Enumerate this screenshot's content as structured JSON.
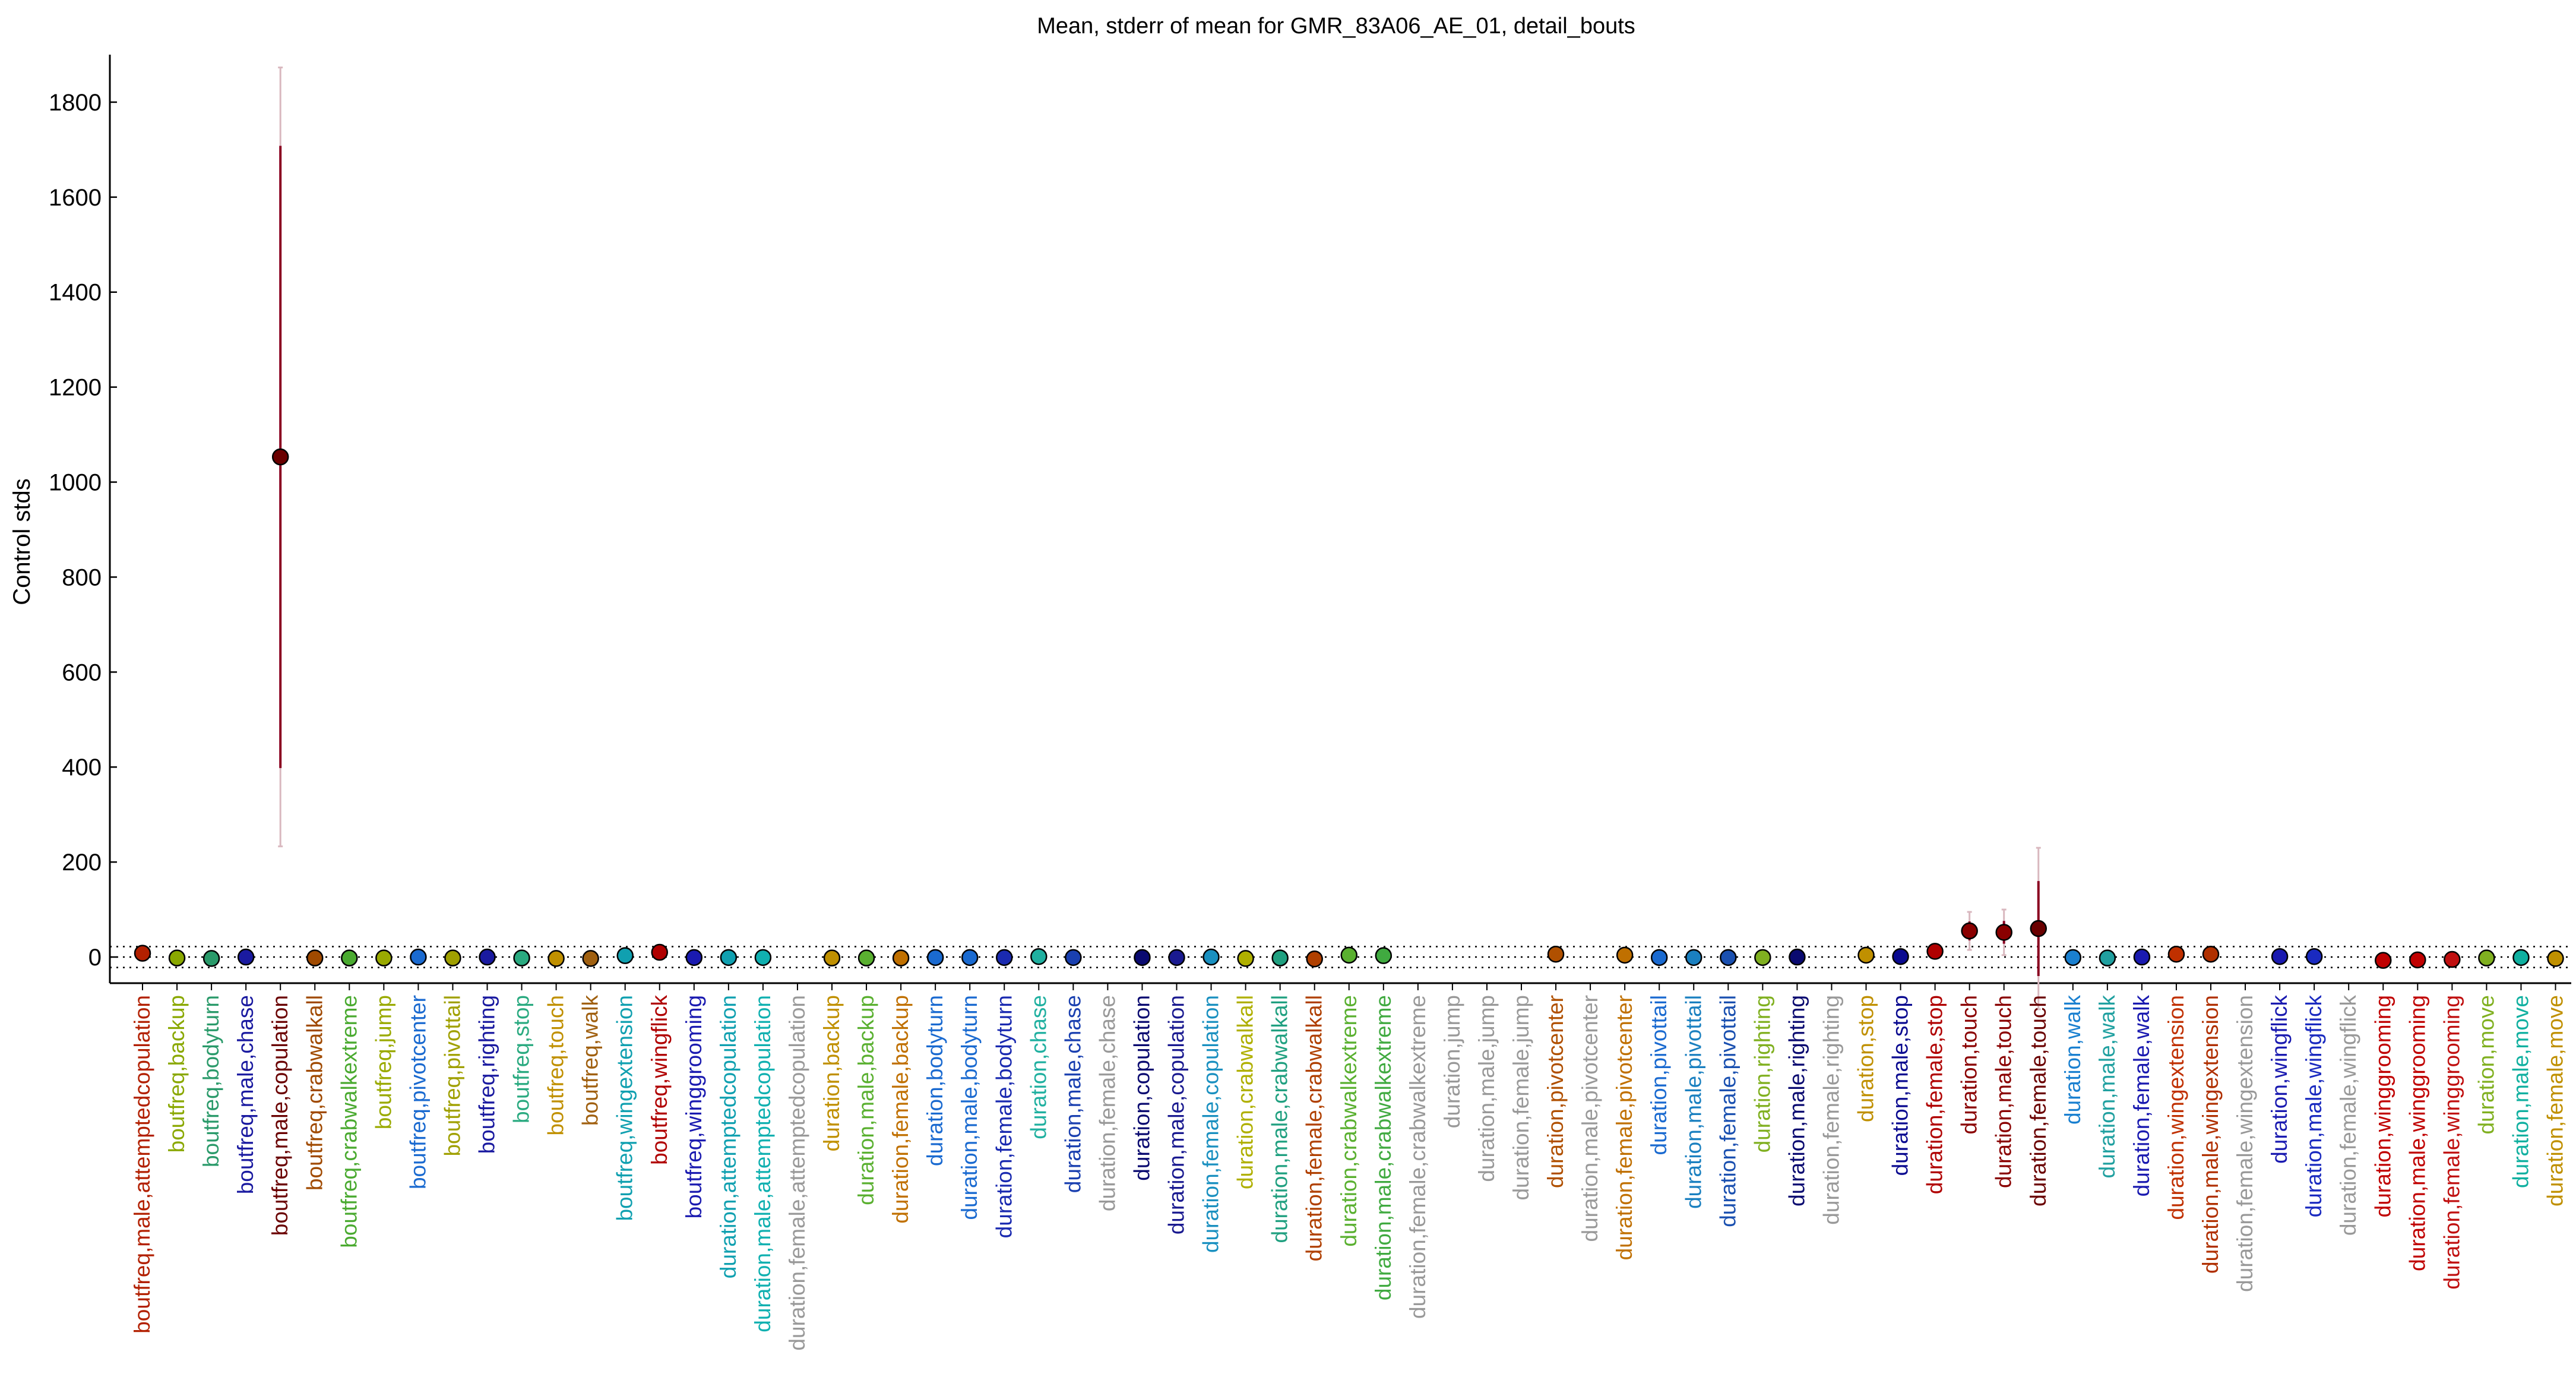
{
  "chart_data": {
    "type": "scatter",
    "title": "Mean, stderr of mean for GMR_83A06_AE_01, detail_bouts",
    "xlabel": "",
    "ylabel": "Control stds",
    "ylim": [
      -55,
      1900
    ],
    "yticks": [
      0,
      200,
      400,
      600,
      800,
      1000,
      1200,
      1400,
      1600,
      1800
    ],
    "grid": false,
    "legend": "none",
    "points": [
      {
        "label": "boutfreq,male,attemptedcopulation",
        "color": "#b22000",
        "mean": 8,
        "se": 3,
        "ci": 6
      },
      {
        "label": "boutfreq,backup",
        "color": "#8aa800",
        "mean": -2,
        "se": 2,
        "ci": 3
      },
      {
        "label": "boutfreq,bodyturn",
        "color": "#2a9a6a",
        "mean": -3,
        "se": 2,
        "ci": 3
      },
      {
        "label": "boutfreq,male,chase",
        "color": "#1a1aa0",
        "mean": 0,
        "se": 2,
        "ci": 3
      },
      {
        "label": "boutfreq,male,copulation",
        "color": "#6a0000",
        "mean": 1053,
        "se": 655,
        "ci": 820
      },
      {
        "label": "boutfreq,crabwalkall",
        "color": "#a04a00",
        "mean": -2,
        "se": 2,
        "ci": 3
      },
      {
        "label": "boutfreq,crabwalkextreme",
        "color": "#4aaa30",
        "mean": -2,
        "se": 2,
        "ci": 3
      },
      {
        "label": "boutfreq,jump",
        "color": "#9aaa00",
        "mean": -2,
        "se": 2,
        "ci": 3
      },
      {
        "label": "boutfreq,pivotcenter",
        "color": "#1a6ad0",
        "mean": 0,
        "se": 2,
        "ci": 3
      },
      {
        "label": "boutfreq,pivottail",
        "color": "#a0a000",
        "mean": -2,
        "se": 2,
        "ci": 3
      },
      {
        "label": "boutfreq,righting",
        "color": "#1a1aa0",
        "mean": 0,
        "se": 2,
        "ci": 3
      },
      {
        "label": "boutfreq,stop",
        "color": "#2aaa80",
        "mean": -2,
        "se": 2,
        "ci": 3
      },
      {
        "label": "boutfreq,touch",
        "color": "#c09000",
        "mean": -3,
        "se": 2,
        "ci": 3
      },
      {
        "label": "boutfreq,walk",
        "color": "#a06010",
        "mean": -3,
        "se": 2,
        "ci": 3
      },
      {
        "label": "boutfreq,wingextension",
        "color": "#10a0b0",
        "mean": 3,
        "se": 2,
        "ci": 3
      },
      {
        "label": "boutfreq,wingflick",
        "color": "#b00000",
        "mean": 10,
        "se": 3,
        "ci": 6
      },
      {
        "label": "boutfreq,winggrooming",
        "color": "#1a1ab0",
        "mean": -1,
        "se": 2,
        "ci": 3
      },
      {
        "label": "duration,attemptedcopulation",
        "color": "#10a0b0",
        "mean": -1,
        "se": 2,
        "ci": 3
      },
      {
        "label": "duration,male,attemptedcopulation",
        "color": "#10b0b0",
        "mean": -1,
        "se": 2,
        "ci": 3
      },
      {
        "label": "duration,female,attemptedcopulation",
        "color": "#999999",
        "mean": null,
        "se": 0,
        "ci": 0
      },
      {
        "label": "duration,backup",
        "color": "#c09000",
        "mean": -2,
        "se": 2,
        "ci": 3
      },
      {
        "label": "duration,male,backup",
        "color": "#5ab030",
        "mean": -2,
        "se": 2,
        "ci": 3
      },
      {
        "label": "duration,female,backup",
        "color": "#c07000",
        "mean": -2,
        "se": 2,
        "ci": 3
      },
      {
        "label": "duration,bodyturn",
        "color": "#1a6ad0",
        "mean": -1,
        "se": 2,
        "ci": 3
      },
      {
        "label": "duration,male,bodyturn",
        "color": "#1a6ad0",
        "mean": -1,
        "se": 2,
        "ci": 3
      },
      {
        "label": "duration,female,bodyturn",
        "color": "#1a2ab0",
        "mean": -1,
        "se": 2,
        "ci": 3
      },
      {
        "label": "duration,chase",
        "color": "#20b0a0",
        "mean": 1,
        "se": 2,
        "ci": 3
      },
      {
        "label": "duration,male,chase",
        "color": "#1a40b0",
        "mean": -1,
        "se": 2,
        "ci": 3
      },
      {
        "label": "duration,female,chase",
        "color": "#999999",
        "mean": null,
        "se": 0,
        "ci": 0
      },
      {
        "label": "duration,copulation",
        "color": "#0a0a70",
        "mean": -1,
        "se": 2,
        "ci": 3
      },
      {
        "label": "duration,male,copulation",
        "color": "#1a1a90",
        "mean": -1,
        "se": 2,
        "ci": 3
      },
      {
        "label": "duration,female,copulation",
        "color": "#1a90c0",
        "mean": 0,
        "se": 2,
        "ci": 3
      },
      {
        "label": "duration,crabwalkall",
        "color": "#b0b000",
        "mean": -3,
        "se": 2,
        "ci": 3
      },
      {
        "label": "duration,male,crabwalkall",
        "color": "#20a080",
        "mean": -2,
        "se": 2,
        "ci": 3
      },
      {
        "label": "duration,female,crabwalkall",
        "color": "#b04000",
        "mean": -4,
        "se": 2,
        "ci": 3
      },
      {
        "label": "duration,crabwalkextreme",
        "color": "#5ab030",
        "mean": 4,
        "se": 2,
        "ci": 3
      },
      {
        "label": "duration,male,crabwalkextreme",
        "color": "#40aa40",
        "mean": 3,
        "se": 2,
        "ci": 3
      },
      {
        "label": "duration,female,crabwalkextreme",
        "color": "#999999",
        "mean": null,
        "se": 0,
        "ci": 0
      },
      {
        "label": "duration,jump",
        "color": "#999999",
        "mean": null,
        "se": 0,
        "ci": 0
      },
      {
        "label": "duration,male,jump",
        "color": "#999999",
        "mean": null,
        "se": 0,
        "ci": 0
      },
      {
        "label": "duration,female,jump",
        "color": "#999999",
        "mean": null,
        "se": 0,
        "ci": 0
      },
      {
        "label": "duration,pivotcenter",
        "color": "#b05000",
        "mean": 6,
        "se": 2,
        "ci": 3
      },
      {
        "label": "duration,male,pivotcenter",
        "color": "#999999",
        "mean": null,
        "se": 0,
        "ci": 0
      },
      {
        "label": "duration,female,pivotcenter",
        "color": "#c07000",
        "mean": 4,
        "se": 2,
        "ci": 3
      },
      {
        "label": "duration,pivottail",
        "color": "#1a6ad0",
        "mean": -1,
        "se": 2,
        "ci": 3
      },
      {
        "label": "duration,male,pivottail",
        "color": "#1a80c0",
        "mean": -1,
        "se": 2,
        "ci": 3
      },
      {
        "label": "duration,female,pivottail",
        "color": "#1a50b0",
        "mean": -1,
        "se": 2,
        "ci": 3
      },
      {
        "label": "duration,righting",
        "color": "#80b020",
        "mean": -1,
        "se": 2,
        "ci": 3
      },
      {
        "label": "duration,male,righting",
        "color": "#0a0a70",
        "mean": 0,
        "se": 2,
        "ci": 3
      },
      {
        "label": "duration,female,righting",
        "color": "#999999",
        "mean": null,
        "se": 0,
        "ci": 0
      },
      {
        "label": "duration,stop",
        "color": "#c09000",
        "mean": 4,
        "se": 2,
        "ci": 3
      },
      {
        "label": "duration,male,stop",
        "color": "#0a0a90",
        "mean": 1,
        "se": 2,
        "ci": 3
      },
      {
        "label": "duration,female,stop",
        "color": "#b00000",
        "mean": 12,
        "se": 4,
        "ci": 8
      },
      {
        "label": "duration,touch",
        "color": "#8a0000",
        "mean": 55,
        "se": 20,
        "ci": 40
      },
      {
        "label": "duration,male,touch",
        "color": "#8a0000",
        "mean": 52,
        "se": 24,
        "ci": 48
      },
      {
        "label": "duration,female,touch",
        "color": "#6a0000",
        "mean": 60,
        "se": 100,
        "ci": 170
      },
      {
        "label": "duration,walk",
        "color": "#1a80d0",
        "mean": -1,
        "se": 2,
        "ci": 3
      },
      {
        "label": "duration,male,walk",
        "color": "#20a0a0",
        "mean": -2,
        "se": 2,
        "ci": 3
      },
      {
        "label": "duration,female,walk",
        "color": "#1a1ab0",
        "mean": 0,
        "se": 2,
        "ci": 3
      },
      {
        "label": "duration,wingextension",
        "color": "#c03000",
        "mean": 6,
        "se": 2,
        "ci": 3
      },
      {
        "label": "duration,male,wingextension",
        "color": "#b03000",
        "mean": 6,
        "se": 2,
        "ci": 3
      },
      {
        "label": "duration,female,wingextension",
        "color": "#999999",
        "mean": null,
        "se": 0,
        "ci": 0
      },
      {
        "label": "duration,wingflick",
        "color": "#1a1ab0",
        "mean": 1,
        "se": 2,
        "ci": 3
      },
      {
        "label": "duration,male,wingflick",
        "color": "#1a2ac0",
        "mean": 1,
        "se": 2,
        "ci": 3
      },
      {
        "label": "duration,female,wingflick",
        "color": "#999999",
        "mean": null,
        "se": 0,
        "ci": 0
      },
      {
        "label": "duration,winggrooming",
        "color": "#c00000",
        "mean": -7,
        "se": 2,
        "ci": 3
      },
      {
        "label": "duration,male,winggrooming",
        "color": "#c00000",
        "mean": -6,
        "se": 2,
        "ci": 3
      },
      {
        "label": "duration,female,winggrooming",
        "color": "#c01010",
        "mean": -5,
        "se": 2,
        "ci": 3
      },
      {
        "label": "duration,move",
        "color": "#80b020",
        "mean": -2,
        "se": 2,
        "ci": 3
      },
      {
        "label": "duration,male,move",
        "color": "#10b0a0",
        "mean": -1,
        "se": 2,
        "ci": 3
      },
      {
        "label": "duration,female,move",
        "color": "#c09000",
        "mean": -3,
        "se": 2,
        "ci": 3
      }
    ]
  }
}
